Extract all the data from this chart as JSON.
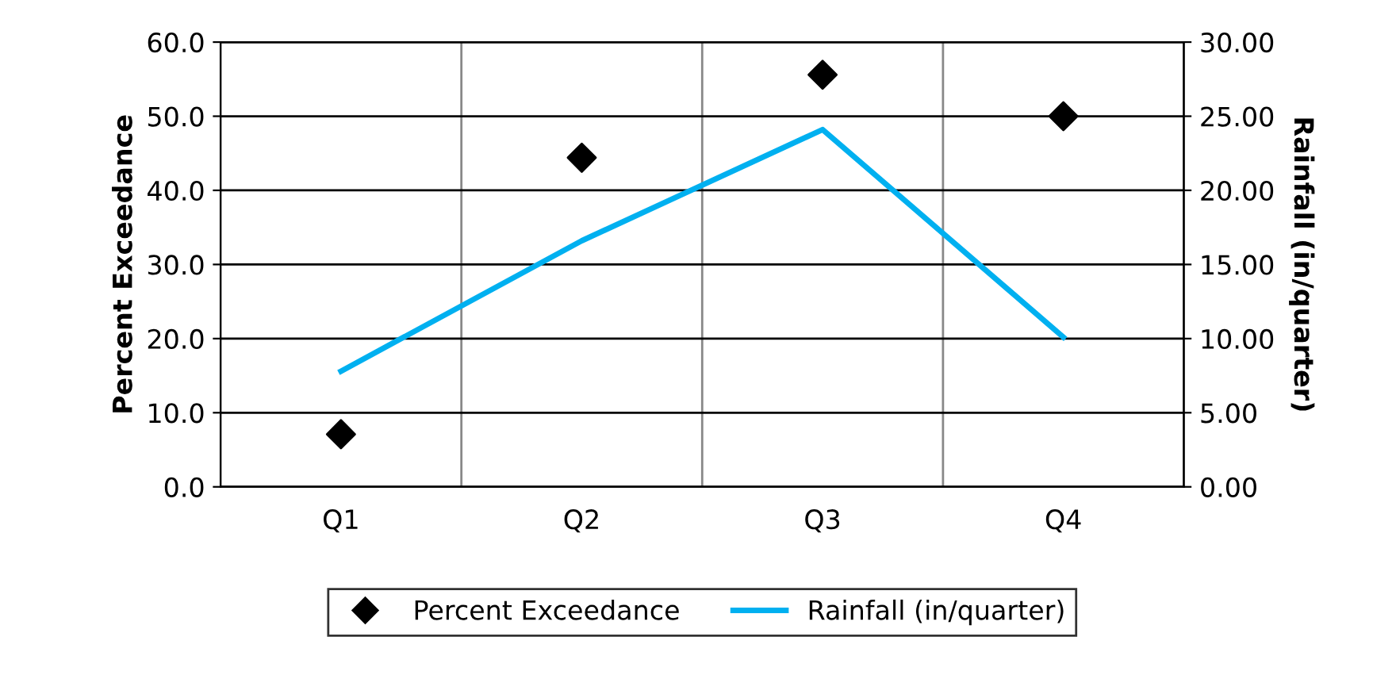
{
  "chart_data": {
    "type": "line",
    "categories": [
      "Q1",
      "Q2",
      "Q3",
      "Q4"
    ],
    "ylabel": "Percent Exceedance",
    "y2label": "Rainfall (in/quarter)",
    "series": [
      {
        "name": "Percent Exceedance",
        "type": "scatter",
        "color": "#000000",
        "marker": "diamond",
        "values": [
          7.1,
          44.4,
          55.6,
          50.0
        ]
      },
      {
        "name": "Rainfall (in/quarter)",
        "axis": "y2",
        "color": "#00b0f0",
        "marker": "none",
        "line_style": "solid",
        "values": [
          7.8,
          16.6,
          24.1,
          10.1
        ]
      }
    ],
    "ylim": [
      0,
      60
    ],
    "yticks": [
      {
        "value": 0,
        "label": "0.0"
      },
      {
        "value": 10,
        "label": "10.0"
      },
      {
        "value": 20,
        "label": "20.0"
      },
      {
        "value": 30,
        "label": "30.0"
      },
      {
        "value": 40,
        "label": "40.0"
      },
      {
        "value": 50,
        "label": "50.0"
      },
      {
        "value": 60,
        "label": "60.0"
      }
    ],
    "y2lim": [
      0,
      30
    ],
    "y2ticks": [
      {
        "value": 0,
        "label": "0.00"
      },
      {
        "value": 5,
        "label": "5.00"
      },
      {
        "value": 10,
        "label": "10.00"
      },
      {
        "value": 15,
        "label": "15.00"
      },
      {
        "value": 20,
        "label": "20.00"
      },
      {
        "value": 25,
        "label": "25.00"
      },
      {
        "value": 30,
        "label": "30.00"
      }
    ],
    "grid": true,
    "legend": "bottom"
  }
}
